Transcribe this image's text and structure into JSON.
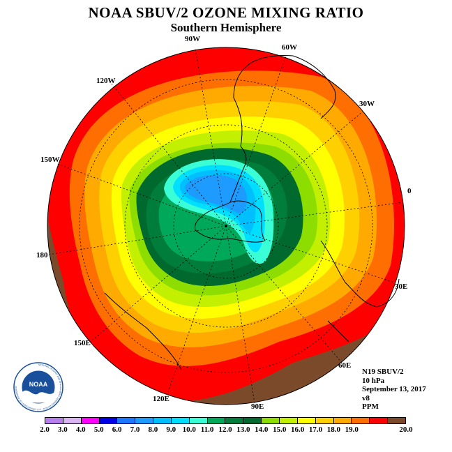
{
  "header": {
    "title": "NOAA SBUV/2 OZONE MIXING RATIO",
    "subtitle": "Southern Hemisphere"
  },
  "map": {
    "projection": "south-polar-stereographic",
    "field": "ozone-mixing-ratio",
    "longitude_labels": [
      "90W",
      "60W",
      "30W",
      "0",
      "30E",
      "60E",
      "90E",
      "120E",
      "150E",
      "180",
      "150W",
      "120W"
    ],
    "field_description_levels": [
      "outer-ring 19-20",
      "red 18-19",
      "orange 16-18",
      "yellow 14-16",
      "light-green 12-14",
      "dark-green 10-12",
      "cyan/blue 5-10"
    ]
  },
  "info": {
    "satellite": "N19 SBUV/2",
    "level": "10 hPa",
    "date": "September 13, 2017",
    "version": "v8",
    "units": "PPM"
  },
  "colorbar": {
    "labels": [
      "2.0",
      "3.0",
      "4.0",
      "5.0",
      "6.0",
      "7.0",
      "8.0",
      "9.0",
      "10.0",
      "11.0",
      "12.0",
      "13.0",
      "14.0",
      "15.0",
      "16.0",
      "17.0",
      "18.0",
      "19.0",
      "20.0"
    ],
    "colors": [
      "#b77fe9",
      "#d9b3f2",
      "#ff00ff",
      "#0000e6",
      "#1e78ff",
      "#1e9bff",
      "#00bfff",
      "#00dfff",
      "#3affd6",
      "#00a85a",
      "#007d3a",
      "#006a2e",
      "#8ddd00",
      "#c3f000",
      "#ffff00",
      "#ffd000",
      "#ffaa00",
      "#ff6e00",
      "#ff0000",
      "#7a4a2a"
    ]
  },
  "logo": {
    "text": "NOAA",
    "ring_text": "NATIONAL OCEANIC AND ATMOSPHERIC ADMINISTRATION · U.S. DEPARTMENT OF COMMERCE"
  }
}
